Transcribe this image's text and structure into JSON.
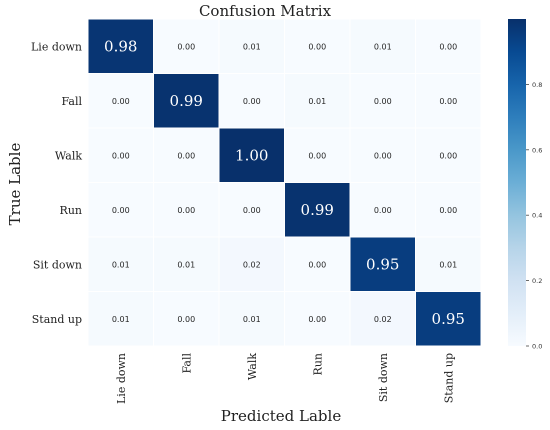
{
  "chart_data": {
    "type": "heatmap",
    "title": "Confusion Matrix",
    "xlabel": "Predicted Lable",
    "ylabel": "True Lable",
    "x_categories": [
      "Lie down",
      "Fall",
      "Walk",
      "Run",
      "Sit down",
      "Stand up"
    ],
    "y_categories": [
      "Lie down",
      "Fall",
      "Walk",
      "Run",
      "Sit down",
      "Stand up"
    ],
    "values": [
      [
        0.98,
        0.0,
        0.01,
        0.0,
        0.01,
        0.0
      ],
      [
        0.0,
        0.99,
        0.0,
        0.01,
        0.0,
        0.0
      ],
      [
        0.0,
        0.0,
        1.0,
        0.0,
        0.0,
        0.0
      ],
      [
        0.0,
        0.0,
        0.0,
        0.99,
        0.0,
        0.0
      ],
      [
        0.01,
        0.01,
        0.02,
        0.0,
        0.95,
        0.01
      ],
      [
        0.01,
        0.0,
        0.01,
        0.0,
        0.02,
        0.95
      ]
    ],
    "colorbar": {
      "min": 0.0,
      "max": 1.0,
      "ticks": [
        "0.0",
        "0.2",
        "0.4",
        "0.6",
        "0.8"
      ],
      "colormap": "Blues",
      "low_color": "#f7fbff",
      "high_color": "#08306b"
    },
    "grid": true
  }
}
